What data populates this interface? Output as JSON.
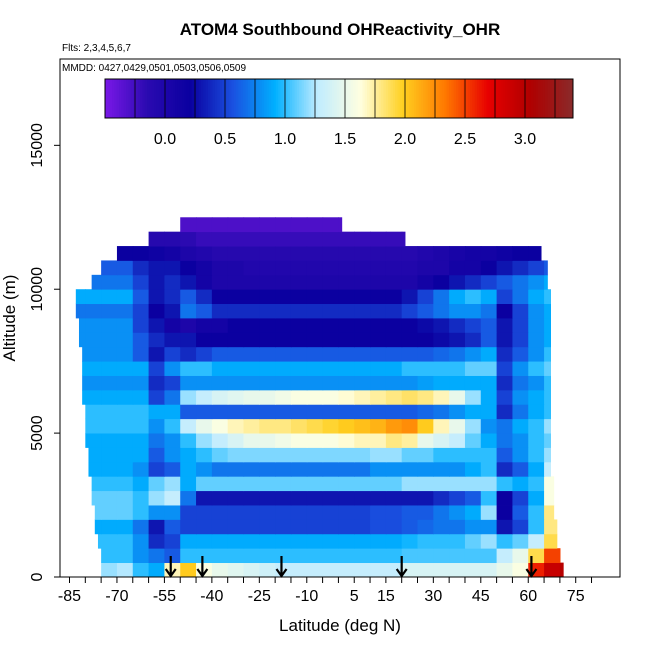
{
  "chart_data": {
    "type": "heatmap",
    "title": "ATOM4 Southbound OHReactivity_OHR",
    "flights_label": "Flts: 2,3,4,5,6,7",
    "dates_label": "MMDD: 0427,0429,0501,0503,0506,0509",
    "xlabel": "Latitude (deg N)",
    "ylabel": "Altitude (m)",
    "xlim": [
      -88,
      89
    ],
    "ylim": [
      0,
      18000
    ],
    "x_ticks": [
      -85,
      -70,
      -55,
      -40,
      -25,
      -10,
      5,
      15,
      30,
      45,
      60,
      75
    ],
    "x_tick_labels": [
      "-85",
      "-70",
      "-55",
      "-40",
      "-25",
      "-10",
      "5",
      "15",
      "30",
      "45",
      "60",
      "75"
    ],
    "y_ticks": [
      0,
      5000,
      10000,
      15000
    ],
    "y_tick_labels": [
      "0",
      "5000",
      "10000",
      "15000"
    ],
    "colorbar": {
      "min": -0.5,
      "max": 3.4,
      "ticks": [
        0.0,
        0.5,
        1.0,
        1.5,
        2.0,
        2.5,
        3.0
      ],
      "tick_labels": [
        "0.0",
        "0.5",
        "1.0",
        "1.5",
        "2.0",
        "2.5",
        "3.0"
      ],
      "colors": [
        "#7a18e8",
        "#2a0ab0",
        "#0a00a0",
        "#1a50e0",
        "#00b0ff",
        "#c0ecff",
        "#ffffe0",
        "#ffd020",
        "#ff7800",
        "#e80000",
        "#b00000",
        "#8a2a2a"
      ]
    },
    "arrows_lat": [
      -53,
      -43,
      -18,
      20,
      61
    ],
    "altitude_bins": [
      250,
      750,
      1250,
      1750,
      2250,
      2750,
      3250,
      3750,
      4250,
      4750,
      5250,
      5750,
      6250,
      6750,
      7250,
      7750,
      8250,
      8750,
      9250,
      9750,
      10250,
      10750,
      11250,
      11750,
      12250
    ],
    "lat_extent_per_bin": [
      [
        -75,
        71
      ],
      [
        -75,
        70
      ],
      [
        -76,
        69
      ],
      [
        -77,
        69
      ],
      [
        -77,
        68
      ],
      [
        -78,
        68
      ],
      [
        -78,
        68
      ],
      [
        -79,
        67
      ],
      [
        -79,
        67
      ],
      [
        -80,
        67
      ],
      [
        -80,
        67
      ],
      [
        -80,
        67
      ],
      [
        -81,
        67
      ],
      [
        -81,
        67
      ],
      [
        -81,
        67
      ],
      [
        -81,
        67
      ],
      [
        -82,
        67
      ],
      [
        -82,
        67
      ],
      [
        -83,
        67
      ],
      [
        -83,
        67
      ],
      [
        -78,
        66
      ],
      [
        -75,
        66
      ],
      [
        -70,
        64
      ],
      [
        -60,
        21
      ],
      [
        -50,
        1
      ]
    ],
    "grid_lats": [
      -85,
      -80,
      -75,
      -70,
      -65,
      -60,
      -55,
      -50,
      -45,
      -40,
      -35,
      -30,
      -25,
      -20,
      -15,
      -10,
      -5,
      0,
      5,
      10,
      15,
      20,
      25,
      30,
      35,
      40,
      45,
      50,
      55,
      60,
      65,
      70
    ],
    "grid_values": [
      [
        1.2,
        1.2,
        1.2,
        1.25,
        1.0,
        0.9,
        1.7,
        2.0,
        1.6,
        1.5,
        1.45,
        1.4,
        1.35,
        1.3,
        1.3,
        1.3,
        1.3,
        1.3,
        1.3,
        1.3,
        1.3,
        1.4,
        1.4,
        1.4,
        1.4,
        1.4,
        1.4,
        1.5,
        1.6,
        2.6,
        2.9,
        3.0
      ],
      [
        1.0,
        1.0,
        1.0,
        1.0,
        0.8,
        0.7,
        0.6,
        1.0,
        1.0,
        1.0,
        1.0,
        1.0,
        1.0,
        1.0,
        1.0,
        1.0,
        1.0,
        1.0,
        1.0,
        1.0,
        1.0,
        1.05,
        1.05,
        1.05,
        1.05,
        1.05,
        1.05,
        1.3,
        1.5,
        1.9,
        2.5,
        2.5
      ],
      [
        1.0,
        1.0,
        1.0,
        1.0,
        0.8,
        0.4,
        0.5,
        0.9,
        0.9,
        0.9,
        0.9,
        0.9,
        0.9,
        0.9,
        0.9,
        0.9,
        0.9,
        0.9,
        0.9,
        0.9,
        0.9,
        0.95,
        1.0,
        1.0,
        1.0,
        1.1,
        1.2,
        1.0,
        1.1,
        1.3,
        1.9,
        2.1
      ],
      [
        0.9,
        0.9,
        0.9,
        0.9,
        0.7,
        0.3,
        0.6,
        0.5,
        0.5,
        0.5,
        0.5,
        0.5,
        0.5,
        0.5,
        0.5,
        0.5,
        0.5,
        0.5,
        0.5,
        0.55,
        0.55,
        0.6,
        0.65,
        0.7,
        0.7,
        0.8,
        0.8,
        0.3,
        0.5,
        1.0,
        1.8,
        2.0
      ],
      [
        1.1,
        1.1,
        1.1,
        1.1,
        1.0,
        0.8,
        0.8,
        0.5,
        0.5,
        0.5,
        0.5,
        0.5,
        0.5,
        0.5,
        0.5,
        0.5,
        0.5,
        0.5,
        0.5,
        0.55,
        0.55,
        0.6,
        0.6,
        0.7,
        0.8,
        0.9,
        1.2,
        0.2,
        0.6,
        1.0,
        1.8,
        2.0
      ],
      [
        1.1,
        1.1,
        1.1,
        1.1,
        1.0,
        1.2,
        1.3,
        0.7,
        0.3,
        0.3,
        0.3,
        0.3,
        0.3,
        0.3,
        0.3,
        0.3,
        0.3,
        0.3,
        0.3,
        0.3,
        0.3,
        0.3,
        0.3,
        0.4,
        0.5,
        0.6,
        1.0,
        0.2,
        0.5,
        0.9,
        1.6,
        1.9
      ],
      [
        1.0,
        1.0,
        1.0,
        1.0,
        0.9,
        1.1,
        1.2,
        0.9,
        1.1,
        1.1,
        1.1,
        1.1,
        1.1,
        1.1,
        1.1,
        1.1,
        1.1,
        1.1,
        1.1,
        1.1,
        1.1,
        1.2,
        1.2,
        1.2,
        1.2,
        1.2,
        1.2,
        1.0,
        0.9,
        1.0,
        1.6,
        1.9
      ],
      [
        0.9,
        0.9,
        0.9,
        0.9,
        0.8,
        0.5,
        0.6,
        0.9,
        0.8,
        0.7,
        0.7,
        0.7,
        0.7,
        0.7,
        0.7,
        0.7,
        0.7,
        0.7,
        0.7,
        0.8,
        0.8,
        0.8,
        0.8,
        0.8,
        0.8,
        0.9,
        1.0,
        0.4,
        0.6,
        0.9,
        1.3,
        1.5
      ],
      [
        0.9,
        0.9,
        0.9,
        0.9,
        0.9,
        0.6,
        0.8,
        0.9,
        1.0,
        1.1,
        1.15,
        1.15,
        1.15,
        1.15,
        1.15,
        1.15,
        1.15,
        1.15,
        1.15,
        1.2,
        1.2,
        1.1,
        1.1,
        1.0,
        1.0,
        1.0,
        1.0,
        0.6,
        0.8,
        1.0,
        1.2,
        1.2
      ],
      [
        0.9,
        0.9,
        0.9,
        0.9,
        0.9,
        0.7,
        0.8,
        1.0,
        1.2,
        1.3,
        1.4,
        1.5,
        1.5,
        1.55,
        1.6,
        1.6,
        1.6,
        1.65,
        1.7,
        1.7,
        1.8,
        1.75,
        1.5,
        1.4,
        1.3,
        1.1,
        0.9,
        0.7,
        0.8,
        1.0,
        1.1,
        1.2
      ],
      [
        1.0,
        1.0,
        1.0,
        1.0,
        1.0,
        0.8,
        1.0,
        1.3,
        1.5,
        1.6,
        1.7,
        1.75,
        1.8,
        1.8,
        1.85,
        1.9,
        1.95,
        2.0,
        2.05,
        2.1,
        2.2,
        2.25,
        2.0,
        1.7,
        1.5,
        1.2,
        0.8,
        0.7,
        0.9,
        1.0,
        1.2,
        1.3
      ],
      [
        1.0,
        1.0,
        1.0,
        1.0,
        1.0,
        0.9,
        0.9,
        0.6,
        0.6,
        0.6,
        0.6,
        0.6,
        0.6,
        0.6,
        0.6,
        0.6,
        0.6,
        0.6,
        0.6,
        0.6,
        0.6,
        0.6,
        0.65,
        0.7,
        0.8,
        0.9,
        0.9,
        0.4,
        0.7,
        0.9,
        1.0,
        1.1
      ],
      [
        0.9,
        0.9,
        0.9,
        0.9,
        0.9,
        0.5,
        0.7,
        1.2,
        1.3,
        1.4,
        1.45,
        1.5,
        1.5,
        1.55,
        1.6,
        1.6,
        1.6,
        1.65,
        1.7,
        1.75,
        1.8,
        1.85,
        1.8,
        1.7,
        1.5,
        1.2,
        0.9,
        0.5,
        0.8,
        0.9,
        1.0,
        1.1
      ],
      [
        0.8,
        0.8,
        0.8,
        0.8,
        0.8,
        0.4,
        0.5,
        0.8,
        0.8,
        0.8,
        0.8,
        0.8,
        0.8,
        0.8,
        0.8,
        0.8,
        0.8,
        0.8,
        0.8,
        0.8,
        0.8,
        0.8,
        0.85,
        0.9,
        0.9,
        0.9,
        0.9,
        0.4,
        0.7,
        0.8,
        1.0,
        1.0
      ],
      [
        0.9,
        0.9,
        0.9,
        0.9,
        0.9,
        0.5,
        0.8,
        1.0,
        1.0,
        0.9,
        0.9,
        0.9,
        0.9,
        0.9,
        0.9,
        0.9,
        0.9,
        0.9,
        0.9,
        0.9,
        0.9,
        1.0,
        1.0,
        1.0,
        1.0,
        1.1,
        1.1,
        0.5,
        0.8,
        1.0,
        1.1,
        1.1
      ],
      [
        0.8,
        0.8,
        0.8,
        0.8,
        0.6,
        0.3,
        0.5,
        0.4,
        0.5,
        0.6,
        0.6,
        0.6,
        0.6,
        0.6,
        0.6,
        0.6,
        0.6,
        0.6,
        0.6,
        0.6,
        0.6,
        0.6,
        0.6,
        0.65,
        0.7,
        0.8,
        0.9,
        0.4,
        0.6,
        0.8,
        1.0,
        1.0
      ],
      [
        0.8,
        0.8,
        0.8,
        0.8,
        0.6,
        0.4,
        0.3,
        0.3,
        0.2,
        0.2,
        0.2,
        0.2,
        0.2,
        0.2,
        0.2,
        0.2,
        0.2,
        0.2,
        0.2,
        0.2,
        0.2,
        0.2,
        0.2,
        0.25,
        0.3,
        0.4,
        0.6,
        0.3,
        0.5,
        0.8,
        0.9,
        0.9
      ],
      [
        0.8,
        0.8,
        0.8,
        0.8,
        0.5,
        0.3,
        0.1,
        0.0,
        0.1,
        0.1,
        0.2,
        0.2,
        0.2,
        0.2,
        0.2,
        0.2,
        0.2,
        0.2,
        0.2,
        0.2,
        0.2,
        0.2,
        0.25,
        0.3,
        0.4,
        0.5,
        0.6,
        0.3,
        0.5,
        0.8,
        0.9,
        0.9
      ],
      [
        0.7,
        0.7,
        0.7,
        0.7,
        0.5,
        0.2,
        0.3,
        0.7,
        0.6,
        0.4,
        0.4,
        0.4,
        0.4,
        0.4,
        0.4,
        0.4,
        0.4,
        0.4,
        0.4,
        0.4,
        0.4,
        0.5,
        0.6,
        0.7,
        0.8,
        0.8,
        0.7,
        0.2,
        0.5,
        0.8,
        0.9,
        0.9
      ],
      [
        0.9,
        0.9,
        0.9,
        0.9,
        0.6,
        0.3,
        0.4,
        0.6,
        0.4,
        0.2,
        0.2,
        0.2,
        0.2,
        0.2,
        0.2,
        0.2,
        0.2,
        0.2,
        0.2,
        0.2,
        0.2,
        0.3,
        0.5,
        0.7,
        0.9,
        1.0,
        0.9,
        0.5,
        0.7,
        0.9,
        1.0,
        1.0
      ],
      [
        0.7,
        0.7,
        0.7,
        0.7,
        0.5,
        0.3,
        0.4,
        0.3,
        0.1,
        0.0,
        0.0,
        0.0,
        0.0,
        0.0,
        0.0,
        0.0,
        0.0,
        0.0,
        0.0,
        0.0,
        0.0,
        0.0,
        0.1,
        0.2,
        0.3,
        0.4,
        0.5,
        0.6,
        0.7,
        0.8,
        0.9,
        0.9
      ],
      [
        0.6,
        0.6,
        0.6,
        0.6,
        0.4,
        0.3,
        0.3,
        0.2,
        0.1,
        0.0,
        0.0,
        -0.05,
        -0.05,
        -0.05,
        -0.05,
        -0.05,
        -0.05,
        -0.05,
        -0.05,
        -0.05,
        -0.05,
        -0.05,
        0.0,
        0.0,
        0.1,
        0.1,
        0.2,
        0.3,
        0.4,
        0.5,
        0.6,
        0.6
      ],
      [
        0.2,
        0.2,
        0.2,
        0.2,
        0.2,
        0.15,
        0.1,
        0.0,
        -0.05,
        -0.1,
        -0.1,
        -0.1,
        -0.1,
        -0.1,
        -0.1,
        -0.1,
        -0.1,
        -0.1,
        -0.1,
        -0.1,
        -0.1,
        -0.1,
        -0.05,
        0.0,
        0.05,
        0.1,
        0.1,
        0.15,
        0.2,
        0.2,
        0.2,
        0.2
      ],
      [
        -0.1,
        -0.1,
        -0.1,
        -0.1,
        -0.1,
        -0.1,
        -0.1,
        -0.15,
        -0.2,
        -0.2,
        -0.2,
        -0.2,
        -0.2,
        -0.2,
        -0.2,
        -0.2,
        -0.2,
        -0.2,
        -0.2,
        -0.2,
        -0.2,
        -0.2,
        -0.2,
        -0.2,
        -0.2,
        -0.2,
        -0.2,
        -0.2,
        -0.2,
        -0.2,
        -0.2,
        -0.2
      ],
      [
        -0.3,
        -0.3,
        -0.3,
        -0.3,
        -0.3,
        -0.3,
        -0.3,
        -0.3,
        -0.3,
        -0.3,
        -0.3,
        -0.3,
        -0.3,
        -0.3,
        -0.3,
        -0.3,
        -0.3,
        -0.3,
        -0.3,
        -0.3,
        -0.3,
        -0.3,
        -0.3,
        -0.3,
        -0.3,
        -0.3,
        -0.3,
        -0.3,
        -0.3,
        -0.3,
        -0.3,
        -0.3
      ]
    ]
  }
}
